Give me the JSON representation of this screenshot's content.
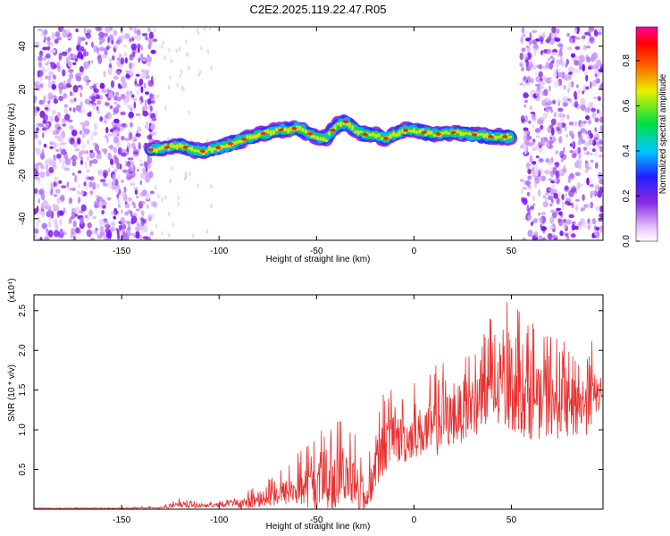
{
  "title": "C2E2.2025.119.22.47.R05",
  "colors": {
    "snr_line": "#e83030",
    "background": "#ffffff"
  },
  "chart_data": [
    {
      "type": "heatmap",
      "xlabel": "Height of straight line (km)",
      "ylabel": "Frequency (Hz)",
      "colorbar_label": "Normalized spectral amplitude",
      "xlim": [
        -195,
        97
      ],
      "ylim": [
        -50,
        49
      ],
      "xticks": [
        -150,
        -100,
        -50,
        0,
        50
      ],
      "yticks": [
        -40,
        -20,
        0,
        20,
        40
      ],
      "colorbar_range": [
        0.0,
        0.95
      ],
      "colorbar_ticks": [
        "0.0",
        "0.2",
        "0.4",
        "0.6",
        "0.8"
      ],
      "colormap": "rainbow (white-violet-blue-cyan-green-yellow-red-magenta)",
      "ridge_line": {
        "x": [
          -135,
          -120,
          -110,
          -100,
          -90,
          -80,
          -70,
          -60,
          -50,
          -45,
          -40,
          -35,
          -30,
          -25,
          -20,
          -15,
          -10,
          -5,
          0,
          10,
          20,
          30,
          40,
          50
        ],
        "freq_hz": [
          -8,
          -6,
          -9,
          -7,
          -4,
          -1,
          1,
          2,
          -2,
          -3,
          3,
          5,
          1,
          -1,
          -1,
          -3,
          -1,
          1,
          1,
          -1,
          0,
          -1,
          -2,
          -2
        ]
      },
      "noise_regions_km": [
        [
          -195,
          -133
        ],
        [
          55,
          97
        ]
      ]
    },
    {
      "type": "line",
      "xlabel": "Height of straight line (km)",
      "ylabel": "SNR (10 * v/v)",
      "y_multiplier": "(x10⁴)",
      "xlim": [
        -195,
        97
      ],
      "ylim": [
        0.0,
        2.7
      ],
      "xticks": [
        -150,
        -100,
        -50,
        0,
        50
      ],
      "yticks": [
        0.5,
        1.0,
        1.5,
        2.0,
        2.5
      ],
      "envelope": {
        "x": [
          -195,
          -150,
          -130,
          -120,
          -110,
          -100,
          -90,
          -80,
          -70,
          -60,
          -50,
          -45,
          -40,
          -35,
          -30,
          -25,
          -20,
          -15,
          -10,
          -5,
          0,
          10,
          20,
          30,
          40,
          45,
          50,
          60,
          70,
          80,
          90,
          97
        ],
        "mean": [
          0.01,
          0.01,
          0.02,
          0.05,
          0.04,
          0.05,
          0.07,
          0.1,
          0.18,
          0.25,
          0.28,
          0.32,
          0.35,
          0.4,
          0.3,
          0.1,
          0.5,
          0.8,
          0.9,
          0.85,
          0.95,
          1.0,
          1.15,
          1.3,
          1.4,
          1.45,
          1.5,
          1.35,
          1.3,
          1.25,
          1.35,
          1.5
        ],
        "peak": [
          0.02,
          0.02,
          0.04,
          0.15,
          0.08,
          0.1,
          0.2,
          0.3,
          0.5,
          0.7,
          0.95,
          1.1,
          1.25,
          1.1,
          1.2,
          0.5,
          1.2,
          1.55,
          1.65,
          1.5,
          1.6,
          1.8,
          1.95,
          2.2,
          2.45,
          2.6,
          2.7,
          2.4,
          2.2,
          2.1,
          2.25,
          1.8
        ]
      }
    }
  ]
}
